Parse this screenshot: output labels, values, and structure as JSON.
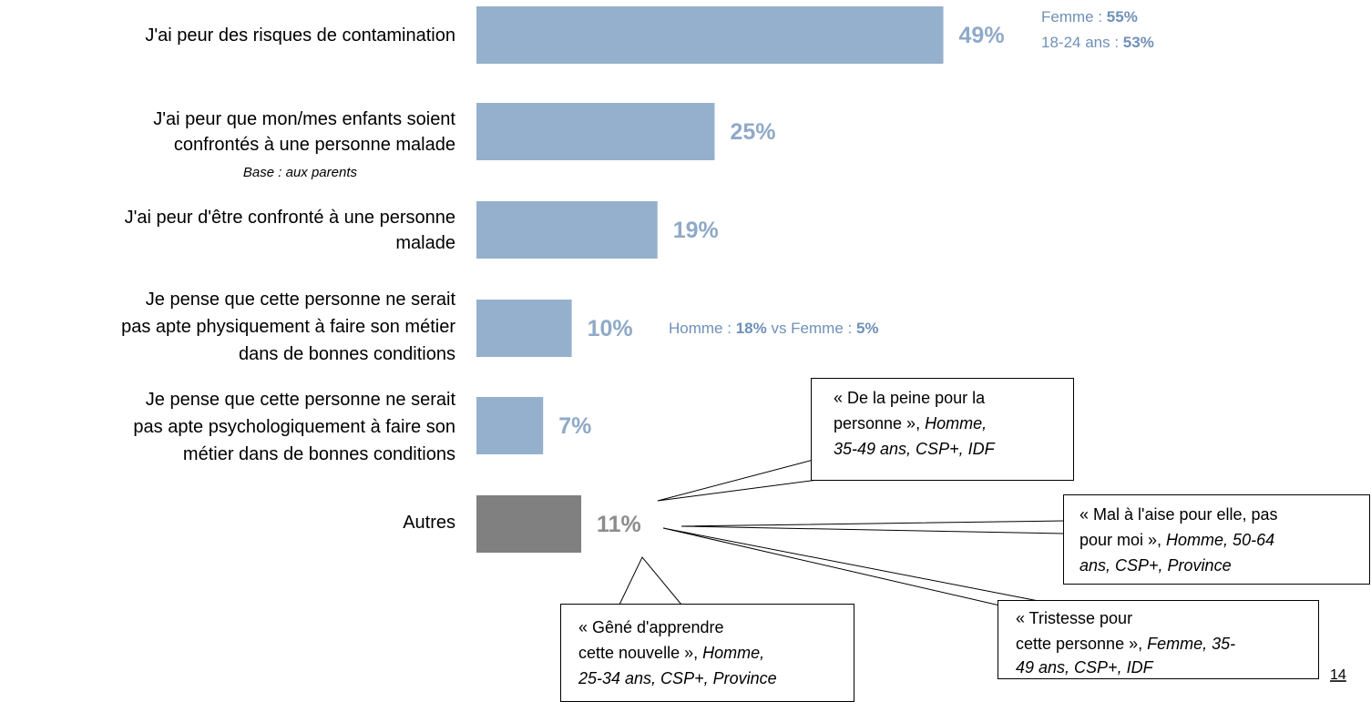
{
  "chart_data": {
    "type": "bar",
    "orientation": "horizontal",
    "categories": [
      "J'ai peur des risques de contamination",
      "J'ai peur que mon/mes enfants soient\nconfrontés à une personne malade",
      "J'ai peur d'être confronté à une personne\nmalade",
      "Je pense que cette personne ne serait\npas apte physiquement à faire son métier\ndans de bonnes conditions",
      "Je pense que cette personne ne serait\npas apte psychologiquement à faire son\nmétier dans de bonnes conditions",
      "Autres"
    ],
    "category_notes": [
      null,
      "Base : aux parents",
      null,
      null,
      null,
      null
    ],
    "values": [
      49,
      25,
      19,
      10,
      7,
      11
    ],
    "value_labels": [
      "49%",
      "25%",
      "19%",
      "10%",
      "7%",
      "11%"
    ],
    "colors": [
      "#95b0cc",
      "#95b0cc",
      "#95b0cc",
      "#95b0cc",
      "#95b0cc",
      "#808080"
    ],
    "label_colors": [
      "#8fa9c8",
      "#8fa9c8",
      "#8fa9c8",
      "#8fa9c8",
      "#8fa9c8",
      "#8c8c8c"
    ],
    "annotations": [
      {
        "row": 0,
        "lines": [
          [
            {
              "text": "Femme : "
            },
            {
              "text": "55%",
              "bold": true
            }
          ],
          [
            {
              "text": "18-24 ans : "
            },
            {
              "text": "53%",
              "bold": true
            }
          ]
        ]
      },
      {
        "row": 3,
        "lines": [
          [
            {
              "text": "Homme : "
            },
            {
              "text": "18%",
              "bold": true
            },
            {
              "text": " vs Femme : "
            },
            {
              "text": "5%",
              "bold": true
            }
          ]
        ]
      }
    ],
    "callouts": [
      {
        "lines": [
          [
            {
              "text": "« De la peine pour la"
            }
          ],
          [
            {
              "text": "personne », "
            },
            {
              "text": "Homme,",
              "italic": true
            }
          ],
          [
            {
              "text": "35-49 ans, CSP+, IDF",
              "italic": true
            }
          ]
        ]
      },
      {
        "lines": [
          [
            {
              "text": "« Mal à l'aise pour elle, pas"
            }
          ],
          [
            {
              "text": "pour moi », "
            },
            {
              "text": "Homme, 50-64",
              "italic": true
            }
          ],
          [
            {
              "text": "ans, CSP+, Province",
              "italic": true
            }
          ]
        ]
      },
      {
        "lines": [
          [
            {
              "text": "« Tristesse pour"
            }
          ],
          [
            {
              "text": "cette personne », "
            },
            {
              "text": "Femme, 35-",
              "italic": true
            }
          ],
          [
            {
              "text": "49 ans, CSP+, IDF",
              "italic": true
            }
          ]
        ]
      },
      {
        "lines": [
          [
            {
              "text": "« Gêné d'apprendre"
            }
          ],
          [
            {
              "text": "cette nouvelle », "
            },
            {
              "text": "Homme,",
              "italic": true
            }
          ],
          [
            {
              "text": "25-34 ans, CSP+, Province",
              "italic": true
            }
          ]
        ]
      }
    ],
    "page_number": "14"
  }
}
